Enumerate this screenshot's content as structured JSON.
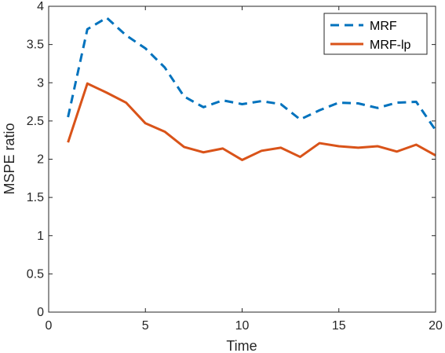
{
  "chart_data": {
    "type": "line",
    "xlabel": "Time",
    "ylabel": "MSPE ratio",
    "xlim": [
      0,
      20
    ],
    "ylim": [
      0,
      4
    ],
    "xticks": [
      0,
      5,
      10,
      15,
      20
    ],
    "yticks": [
      0,
      0.5,
      1,
      1.5,
      2,
      2.5,
      3,
      3.5,
      4
    ],
    "ytick_labels": [
      "0",
      "0.5",
      "1",
      "1.5",
      "2",
      "2.5",
      "3",
      "3.5",
      "4"
    ],
    "grid": false,
    "legend_position": "top-right",
    "x": [
      1,
      2,
      3,
      4,
      5,
      6,
      7,
      8,
      9,
      10,
      11,
      12,
      13,
      14,
      15,
      16,
      17,
      18,
      19,
      20
    ],
    "series": [
      {
        "name": "MRF",
        "style": "dashed",
        "color": "#0072BD",
        "values": [
          2.55,
          3.7,
          3.85,
          3.62,
          3.45,
          3.2,
          2.82,
          2.68,
          2.77,
          2.72,
          2.76,
          2.72,
          2.52,
          2.64,
          2.74,
          2.73,
          2.67,
          2.74,
          2.75,
          2.38
        ]
      },
      {
        "name": "MRF-lp",
        "style": "solid",
        "color": "#D95319",
        "values": [
          2.22,
          2.99,
          2.87,
          2.74,
          2.47,
          2.36,
          2.16,
          2.09,
          2.14,
          1.99,
          2.11,
          2.15,
          2.03,
          2.21,
          2.17,
          2.15,
          2.17,
          2.1,
          2.19,
          2.05
        ]
      }
    ]
  }
}
